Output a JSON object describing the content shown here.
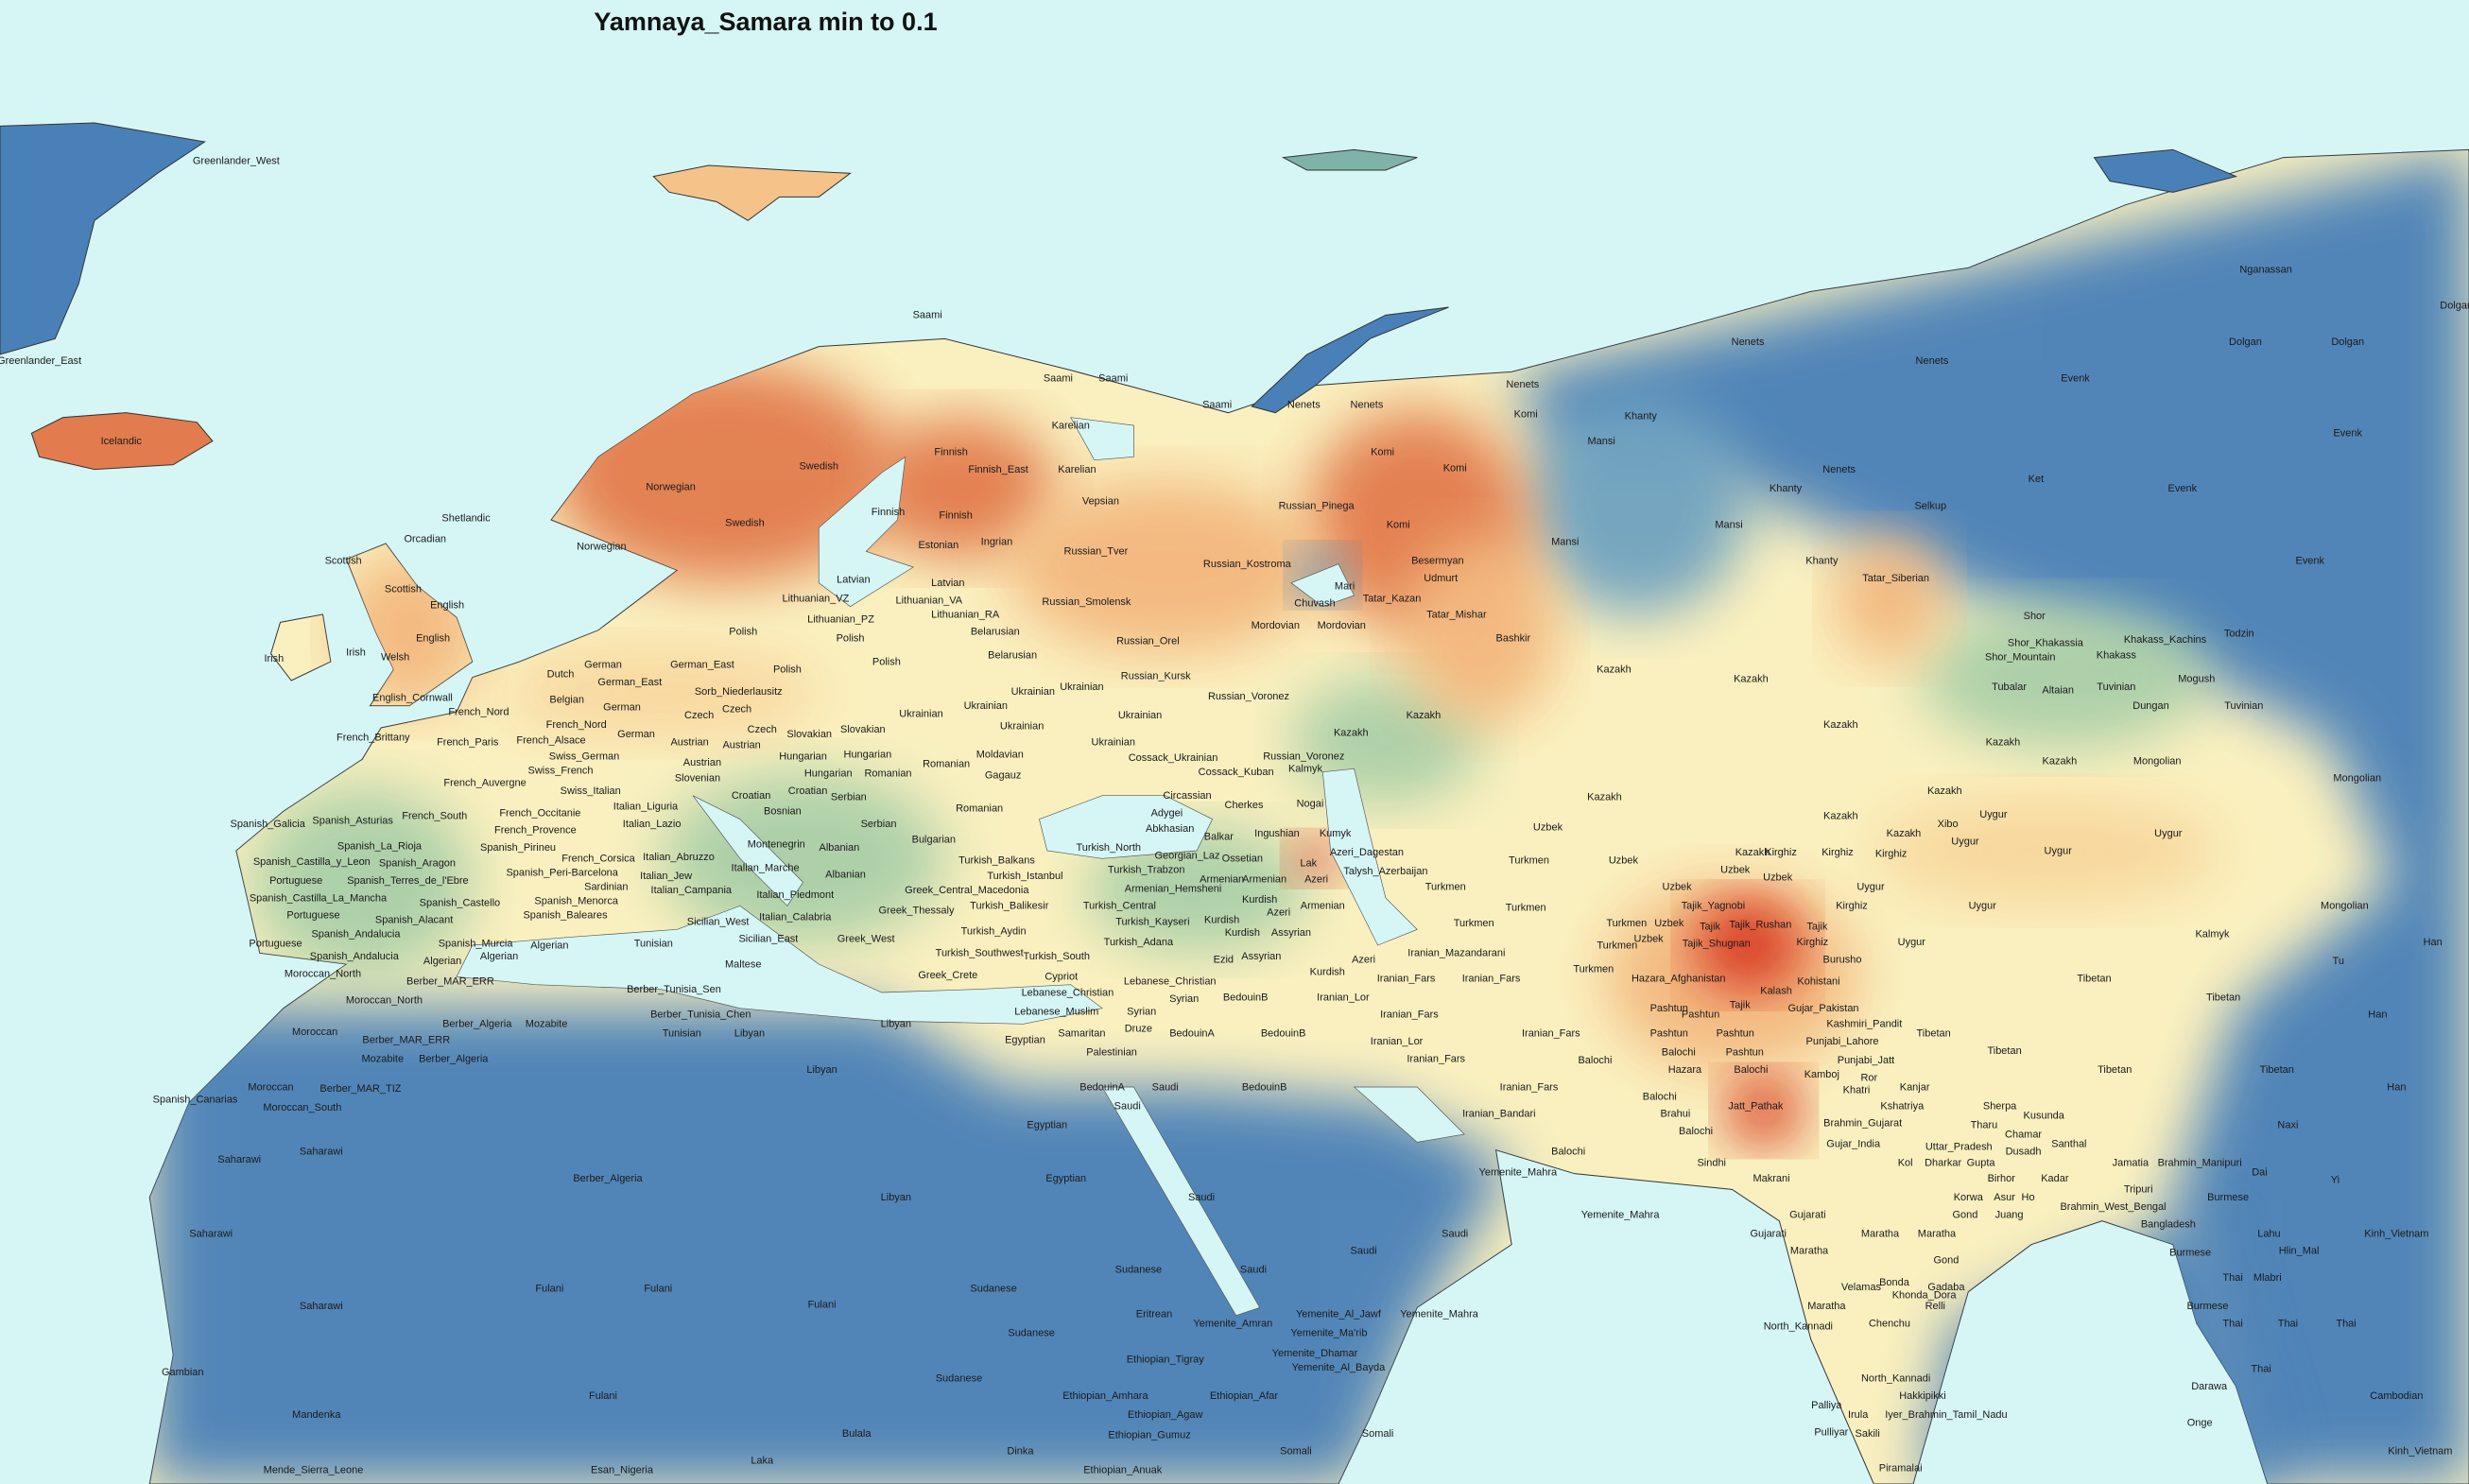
{
  "title": "Yamnaya_Samara min to 0.1",
  "colors": {
    "water": "#d6f6f6",
    "low": "#4a80b8",
    "mid_low": "#a9cfa8",
    "mid": "#faf0bf",
    "mid_high": "#f3b77e",
    "high": "#e27b4d",
    "max": "#d7301f"
  },
  "map": {
    "labels": [
      "Greenlander_West",
      "Greenlander_East",
      "Icelandic",
      "Saami",
      "Saami",
      "Saami",
      "Saami",
      "Karelian",
      "Karelian",
      "Finnish",
      "Finnish_East",
      "Finnish",
      "Finnish",
      "Swedish",
      "Swedish",
      "Norwegian",
      "Norwegian",
      "Vepsian",
      "Russian_Tver",
      "Estonian",
      "Ingrian",
      "Shetlandic",
      "Orcadian",
      "Scottish",
      "Scottish",
      "English",
      "English",
      "Irish",
      "Irish",
      "Welsh",
      "English_Cornwall",
      "Latvian",
      "Latvian",
      "Lithuanian_VZ",
      "Lithuanian_VA",
      "Lithuanian_RA",
      "Lithuanian_PZ",
      "Polish",
      "Belarusian",
      "Belarusian",
      "Polish",
      "Polish",
      "Polish",
      "Dutch",
      "German_East",
      "German_East",
      "German",
      "Sorb_Niederlausitz",
      "Belgian",
      "German",
      "Czech",
      "Czech",
      "French_Nord",
      "French_Nord",
      "German",
      "French_Brittany",
      "French_Paris",
      "French_Alsace",
      "Austrian",
      "Austrian",
      "Czech",
      "Slovakian",
      "Slovakian",
      "Swiss_German",
      "Austrian",
      "Hungarian",
      "Hungarian",
      "Swiss_French",
      "Hungarian",
      "Romanian",
      "Romanian",
      "Gagauz",
      "Moldavian",
      "French_Auvergne",
      "Slovenian",
      "Swiss_Italian",
      "Croatian",
      "Croatian",
      "Serbian",
      "Romanian",
      "Bosnian",
      "Serbian",
      "Spanish_Galicia",
      "Spanish_Asturias",
      "French_South",
      "French_Occitanie",
      "Italian_Lazio",
      "Italian_Liguria",
      "French_Provence",
      "Montenegrin",
      "Bulgarian",
      "Spanish_La_Rioja",
      "Spanish_Pirineu",
      "Spanish_Aragon",
      "Spanish_Castilla_y_Leon",
      "French_Corsica",
      "Italian_Abruzzo",
      "Albanian",
      "Albanian",
      "Italian_Marche",
      "Spanish_Terres_de_l'Ebre",
      "Portuguese",
      "Spanish_Peri-Barcelona",
      "Italian_Jew",
      "Sardinian",
      "Italian_Campania",
      "Spanish_Castilla_La_Mancha",
      "Spanish_Castello",
      "Spanish_Menorca",
      "Italian_Piedmont",
      "Portuguese",
      "Spanish_Alacant",
      "Spanish_Baleares",
      "Italian_Calabria",
      "Spanish_Andalucia",
      "Algerian",
      "Sicilian_West",
      "Sicilian_East",
      "Portuguese",
      "Spanish_Murcia",
      "Tunisian",
      "Maltese",
      "Spanish_Andalucia",
      "Algerian",
      "Algerian",
      "Moroccan_North",
      "Berber_MAR_ERR",
      "Berber_Tunisia_Sen",
      "Moroccan_North",
      "Berber_Tunisia_Chen",
      "Berber_Algeria",
      "Mozabite",
      "Moroccan",
      "Berber_MAR_ERR",
      "Tunisian",
      "Libyan",
      "Mozabite",
      "Berber_Algeria",
      "Libyan",
      "Libyan",
      "Moroccan",
      "Berber_MAR_TIZ",
      "Spanish_Canarias",
      "Moroccan_South",
      "Saharawi",
      "Saharawi",
      "Saharawi",
      "Saharawi",
      "Berber_Algeria",
      "Libyan",
      "Egyptian",
      "Egyptian",
      "Egyptian",
      "Fulani",
      "Fulani",
      "Fulani",
      "Fulani",
      "Sudanese",
      "Sudanese",
      "Sudanese",
      "Sudanese",
      "Gambian",
      "Mandenka",
      "Mende_Sierra_Leone",
      "Esan_Nigeria",
      "Bulala",
      "Laka",
      "Dinka",
      "Ethiopian_Anuak",
      "Ethiopian_Gumuz",
      "Ethiopian_Agaw",
      "Ethiopian_Amhara",
      "Ethiopian_Afar",
      "Ethiopian_Tigray",
      "Somali",
      "Somali",
      "Eritrean",
      "Yemenite_Amran",
      "Yemenite_Al_Jawf",
      "Yemenite_Mahra",
      "Yemenite_Ma'rib",
      "Yemenite_Dhamar",
      "Yemenite_Al_Bayda",
      "Yemenite_Mahra",
      "Yemenite_Mahra",
      "Saudi",
      "Saudi",
      "Saudi",
      "Saudi",
      "Saudi",
      "Saudi",
      "BedouinA",
      "BedouinB",
      "BedouinB",
      "BedouinB",
      "BedouinA",
      "Samaritan",
      "Palestinian",
      "Druze",
      "Syrian",
      "Syrian",
      "Lebanese_Christian",
      "Lebanese_Muslim",
      "Lebanese_Christian",
      "Cypriot",
      "Greek_Crete",
      "Turkish_South",
      "Assyrian",
      "Assyrian",
      "Kurdish",
      "Kurdish",
      "Kurdish",
      "Turkish_Adana",
      "Turkish_Kayseri",
      "Turkish_Aydin",
      "Turkish_Southwest",
      "Turkish_Balikesir",
      "Turkish_Central",
      "Turkish_Istanbul",
      "Turkish_Balkans",
      "Greek_Thessaly",
      "Greek_Central_Macedonia",
      "Greek_West",
      "Turkish_North",
      "Turkish_Trabzon",
      "Georgian_Laz",
      "Armenian_Hemsheni",
      "Armenian",
      "Armenian",
      "Azeri",
      "Armenian",
      "Abkhasian",
      "Adygei",
      "Cherkes",
      "Circassian",
      "Balkar",
      "Ossetian",
      "Ingushian",
      "Lak",
      "Kumyk",
      "Azeri_Dagestan",
      "Talysh_Azerbaijan",
      "Azeri",
      "Ezid",
      "Turkmen",
      "Kurdish",
      "Azeri",
      "Iranian_Lor",
      "Iranian_Fars",
      "Iranian_Fars",
      "Iranian_Mazandarani",
      "Iranian_Fars",
      "Iranian_Lor",
      "Iranian_Fars",
      "Iranian_Fars",
      "Iranian_Fars",
      "Iranian_Bandari",
      "Balochi",
      "Nogai",
      "Kalmyk",
      "Cossack_Kuban",
      "Cossack_Ukrainian",
      "Russian_Voronez",
      "Ukrainian",
      "Ukrainian",
      "Ukrainian",
      "Ukrainian",
      "Ukrainian",
      "Ukrainian",
      "Ukrainian",
      "Russian_Voronez",
      "Russian_Kursk",
      "Russian_Orel",
      "Russian_Smolensk",
      "Russian_Kostroma",
      "Russian_Pinega",
      "Komi",
      "Komi",
      "Komi",
      "Komi",
      "Besermyan",
      "Udmurt",
      "Mari",
      "Chuvash",
      "Tatar_Kazan",
      "Tatar_Mishar",
      "Mordovian",
      "Mordovian",
      "Bashkir",
      "Nenets",
      "Nenets",
      "Nenets",
      "Nenets",
      "Nenets",
      "Nenets",
      "Khanty",
      "Khanty",
      "Khanty",
      "Mansi",
      "Mansi",
      "Mansi",
      "Selkup",
      "Ket",
      "Evenk",
      "Evenk",
      "Evenk",
      "Evenk",
      "Nganassan",
      "Dolgan",
      "Dolgan",
      "Dolgan",
      "Kazakh",
      "Kazakh",
      "Kazakh",
      "Kazakh",
      "Kazakh",
      "Kazakh",
      "Kazakh",
      "Kazakh",
      "Kazakh",
      "Kazakh",
      "Kazakh",
      "Kazakh",
      "Tatar_Siberian",
      "Shor",
      "Shor_Khakassia",
      "Shor_Mountain",
      "Khakass_Kachins",
      "Khakass",
      "Todzin",
      "Tubalar",
      "Altaian",
      "Tuvinian",
      "Mogush",
      "Dungan",
      "Tuvinian",
      "Mongolian",
      "Mongolian",
      "Mongolian",
      "Uygur",
      "Uygur",
      "Uygur",
      "Uygur",
      "Uygur",
      "Uygur",
      "Uygur",
      "Xibo",
      "Kirghiz",
      "Kirghiz",
      "Kirghiz",
      "Kirghiz",
      "Kirghiz",
      "Uzbek",
      "Uzbek",
      "Uzbek",
      "Uzbek",
      "Uzbek",
      "Uzbek",
      "Uzbek",
      "Turkmen",
      "Turkmen",
      "Turkmen",
      "Turkmen",
      "Turkmen",
      "Turkmen",
      "Tajik_Yagnobi",
      "Tajik",
      "Tajik_Rushan",
      "Tajik",
      "Tajik_Shugnan",
      "Tajik",
      "Burusho",
      "Kohistani",
      "Kalash",
      "Hazara_Afghanistan",
      "Pashtun",
      "Pashtun",
      "Pashtun",
      "Pashtun",
      "Pashtun",
      "Gujar_Pakistan",
      "Kashmiri_Pandit",
      "Punjabi_Lahore",
      "Punjabi_Jatt",
      "Balochi",
      "Balochi",
      "Balochi",
      "Balochi",
      "Hazara",
      "Kamboj",
      "Ror",
      "Khatri",
      "Brahui",
      "Balochi",
      "Jatt_Pathak",
      "Kanjar",
      "Kshatriya",
      "Brahmin_Gujarat",
      "Gujar_India",
      "Sindhi",
      "Makrani",
      "Gujarati",
      "Gujarati",
      "Maratha",
      "Maratha",
      "Maratha",
      "Gond",
      "Gond",
      "Maratha",
      "Velamas",
      "Bonda",
      "Khonda_Dora",
      "Gadaba",
      "Relli",
      "Chenchu",
      "North_Kannadi",
      "North_Kannadi",
      "Hakkipikki",
      "Irula",
      "Iyer_Brahmin_Tamil_Nadu",
      "Palliya",
      "Pulliyar",
      "Sakili",
      "Piramalai",
      "Tibetan",
      "Tibetan",
      "Tibetan",
      "Tibetan",
      "Tibetan",
      "Tibetan",
      "Han",
      "Han",
      "Han",
      "Tu",
      "Kalmyk",
      "Sherpa",
      "Kusunda",
      "Tharu",
      "Chamar",
      "Santhal",
      "Uttar_Pradesh",
      "Dusadh",
      "Kol",
      "Dharkar",
      "Gupta",
      "Jamatia",
      "Brahmin_Manipuri",
      "Naxi",
      "Dai",
      "Yi",
      "Birhor",
      "Kadar",
      "Tripuri",
      "Burmese",
      "Korwa",
      "Asur",
      "Ho",
      "Brahmin_West_Bengal",
      "Bangladesh",
      "Juang",
      "Burmese",
      "Lahu",
      "Hlin_Mal",
      "Kinh_Vietnam",
      "Thai",
      "Mlabri",
      "Burmese",
      "Thai",
      "Thai",
      "Thai",
      "Thai",
      "Cambodian",
      "Darawa",
      "Onge",
      "Kinh_Vietnam"
    ]
  }
}
